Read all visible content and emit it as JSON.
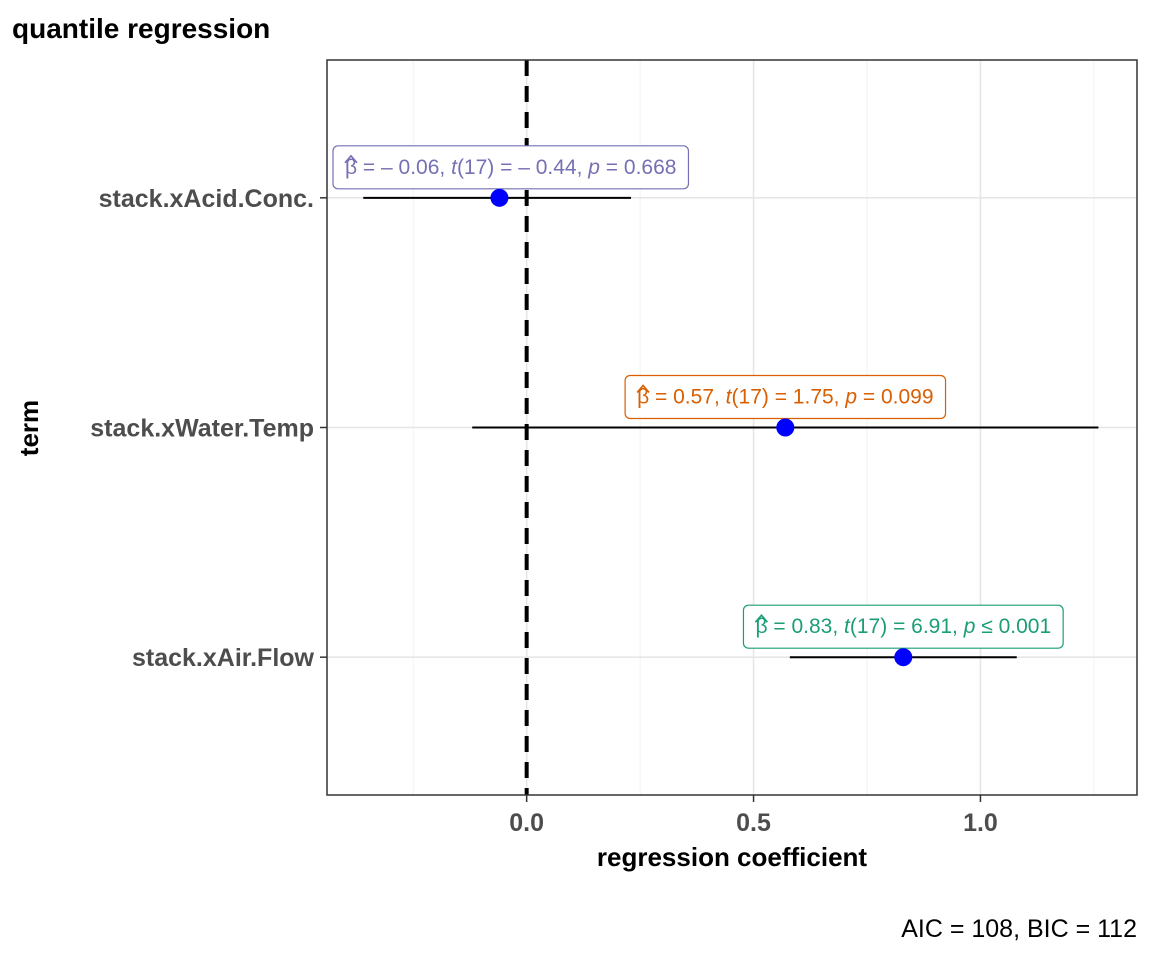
{
  "chart_data": {
    "type": "scatter",
    "title": "quantile regression",
    "xlabel": "regression coefficient",
    "ylabel": "term",
    "xlim": [
      -0.44,
      1.345
    ],
    "x_ticks": [
      "0.0",
      "0.5",
      "1.0"
    ],
    "x_tick_values": [
      0,
      0.5,
      1.0
    ],
    "reference_line": 0,
    "grid": true,
    "caption": "AIC = 108, BIC = 112",
    "point_color": "#0000ff",
    "terms": [
      {
        "term": "stack.xAcid.Conc.",
        "estimate": -0.06,
        "conf_low": -0.36,
        "conf_high": 0.23,
        "color": "#7570b3",
        "label": {
          "beta": "β",
          "eq": "= – 0.06,",
          "t": "t",
          "df": "(17)",
          "teq": "= – 0.44,",
          "p": "p",
          "peq": "= 0.668"
        }
      },
      {
        "term": "stack.xWater.Temp",
        "estimate": 0.57,
        "conf_low": -0.12,
        "conf_high": 1.26,
        "color": "#d95f02",
        "label": {
          "beta": "β",
          "eq": "= 0.57,",
          "t": "t",
          "df": "(17)",
          "teq": "= 1.75,",
          "p": "p",
          "peq": "= 0.099"
        }
      },
      {
        "term": "stack.xAir.Flow",
        "estimate": 0.83,
        "conf_low": 0.58,
        "conf_high": 1.08,
        "color": "#1b9e77",
        "label": {
          "beta": "β",
          "eq": "= 0.83,",
          "t": "t",
          "df": "(17)",
          "teq": "= 6.91,",
          "p": "p",
          "peq": "≤ 0.001"
        }
      }
    ]
  }
}
